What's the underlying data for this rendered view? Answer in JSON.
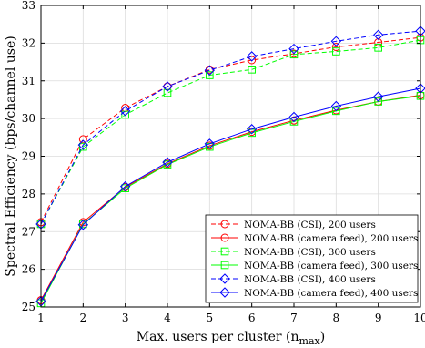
{
  "chart_data": {
    "type": "line",
    "xlabel": "Max. users per cluster (n",
    "xlabel_sub": "max",
    "xlabel_close": ")",
    "ylabel": "Spectral Efficiency (bps/channel use)",
    "x": [
      1,
      2,
      3,
      4,
      5,
      6,
      7,
      8,
      9,
      10
    ],
    "xlim": [
      1,
      10
    ],
    "ylim": [
      25,
      33
    ],
    "xticks": [
      "1",
      "2",
      "3",
      "4",
      "5",
      "6",
      "7",
      "8",
      "9",
      "10"
    ],
    "yticks": [
      "25",
      "26",
      "27",
      "28",
      "29",
      "30",
      "31",
      "32",
      "33"
    ],
    "grid": true,
    "legend_position": "bottom-right",
    "series": [
      {
        "name": "NOMA-BB (CSI), 200 users",
        "color": "#ff0000",
        "dash": "dashed",
        "marker": "circle",
        "values": [
          27.25,
          29.45,
          30.28,
          30.85,
          31.3,
          31.55,
          31.72,
          31.9,
          32.02,
          32.15
        ]
      },
      {
        "name": "NOMA-BB (camera feed), 200 users",
        "color": "#ff0000",
        "dash": "solid",
        "marker": "circle",
        "values": [
          25.18,
          27.25,
          28.18,
          28.8,
          29.28,
          29.65,
          29.95,
          30.22,
          30.45,
          30.62
        ]
      },
      {
        "name": "NOMA-BB (CSI), 300 users",
        "color": "#00ff00",
        "dash": "dashed",
        "marker": "square",
        "values": [
          27.2,
          29.25,
          30.1,
          30.68,
          31.15,
          31.3,
          31.7,
          31.78,
          31.88,
          32.08
        ]
      },
      {
        "name": "NOMA-BB (camera feed), 300 users",
        "color": "#00ff00",
        "dash": "solid",
        "marker": "square",
        "values": [
          25.1,
          27.2,
          28.15,
          28.78,
          29.25,
          29.62,
          29.92,
          30.2,
          30.45,
          30.6
        ]
      },
      {
        "name": "NOMA-BB (CSI), 400 users",
        "color": "#0000ff",
        "dash": "dashed",
        "marker": "diamond",
        "values": [
          27.2,
          29.3,
          30.2,
          30.85,
          31.28,
          31.65,
          31.85,
          32.05,
          32.22,
          32.32
        ]
      },
      {
        "name": "NOMA-BB (camera feed), 400 users",
        "color": "#0000ff",
        "dash": "solid",
        "marker": "diamond",
        "values": [
          25.15,
          27.18,
          28.2,
          28.84,
          29.33,
          29.72,
          30.04,
          30.33,
          30.58,
          30.8
        ]
      }
    ]
  }
}
